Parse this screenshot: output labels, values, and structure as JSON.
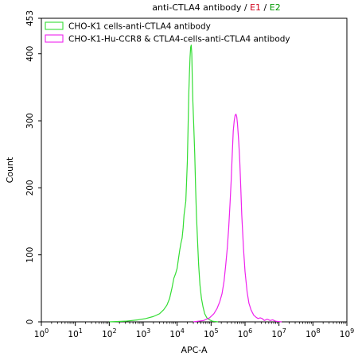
{
  "chart_data": {
    "type": "line",
    "title": {
      "main": "anti-CTLA4 antibody",
      "sep1": " / ",
      "e1": "E1",
      "sep2": " / ",
      "e2": "E2",
      "e1_color": "#d0021b",
      "e2_color": "#009900"
    },
    "xlabel": "APC-A",
    "ylabel": "Count",
    "x_scale": "log",
    "xlim": [
      1,
      1000000000
    ],
    "ylim": [
      0,
      453
    ],
    "x_ticks": [
      {
        "base": "10",
        "exp": "0",
        "value": 1
      },
      {
        "base": "10",
        "exp": "1",
        "value": 10
      },
      {
        "base": "10",
        "exp": "2",
        "value": 100
      },
      {
        "base": "10",
        "exp": "3",
        "value": 1000
      },
      {
        "base": "10",
        "exp": "4",
        "value": 10000
      },
      {
        "base": "10",
        "exp": "5",
        "value": 100000
      },
      {
        "base": "10",
        "exp": "6",
        "value": 1000000
      },
      {
        "base": "10",
        "exp": "7",
        "value": 10000000
      },
      {
        "base": "10",
        "exp": "8",
        "value": 100000000
      },
      {
        "base": "10",
        "exp": "9",
        "value": 1000000000
      }
    ],
    "y_ticks": [
      {
        "label": "0",
        "value": 0
      },
      {
        "label": "100",
        "value": 100
      },
      {
        "label": "200",
        "value": 200
      },
      {
        "label": "300",
        "value": 300
      },
      {
        "label": "400",
        "value": 400
      },
      {
        "label": "453",
        "value": 453
      }
    ],
    "legend_position": "top-left",
    "grid": false,
    "series": [
      {
        "name": "CHO-K1 cells-anti-CTLA4 antibody",
        "color": "#33dd33",
        "points": [
          [
            100,
            0
          ],
          [
            300,
            1
          ],
          [
            700,
            3
          ],
          [
            1200,
            5
          ],
          [
            2000,
            8
          ],
          [
            3000,
            12
          ],
          [
            4000,
            18
          ],
          [
            5000,
            25
          ],
          [
            6000,
            35
          ],
          [
            7000,
            50
          ],
          [
            8000,
            65
          ],
          [
            9000,
            72
          ],
          [
            10000,
            80
          ],
          [
            11000,
            95
          ],
          [
            12000,
            108
          ],
          [
            13000,
            118
          ],
          [
            14000,
            125
          ],
          [
            15000,
            140
          ],
          [
            16000,
            160
          ],
          [
            17000,
            170
          ],
          [
            18000,
            180
          ],
          [
            19000,
            210
          ],
          [
            20000,
            240
          ],
          [
            21000,
            290
          ],
          [
            22000,
            340
          ],
          [
            23000,
            370
          ],
          [
            24000,
            395
          ],
          [
            25000,
            410
          ],
          [
            26000,
            413
          ],
          [
            27000,
            400
          ],
          [
            28000,
            360
          ],
          [
            29000,
            330
          ],
          [
            31000,
            290
          ],
          [
            33000,
            250
          ],
          [
            35000,
            200
          ],
          [
            37000,
            160
          ],
          [
            40000,
            120
          ],
          [
            43000,
            85
          ],
          [
            47000,
            55
          ],
          [
            52000,
            35
          ],
          [
            58000,
            22
          ],
          [
            65000,
            12
          ],
          [
            75000,
            6
          ],
          [
            90000,
            3
          ],
          [
            110000,
            1
          ],
          [
            160000,
            0
          ]
        ]
      },
      {
        "name": "CHO-K1-Hu-CCR8 & CTLA4-cells-anti-CTLA4 antibody",
        "color": "#ee22ee",
        "points": [
          [
            30000,
            0
          ],
          [
            60000,
            2
          ],
          [
            90000,
            6
          ],
          [
            120000,
            12
          ],
          [
            150000,
            20
          ],
          [
            180000,
            30
          ],
          [
            210000,
            42
          ],
          [
            240000,
            60
          ],
          [
            270000,
            85
          ],
          [
            300000,
            110
          ],
          [
            330000,
            140
          ],
          [
            360000,
            175
          ],
          [
            390000,
            210
          ],
          [
            420000,
            250
          ],
          [
            450000,
            285
          ],
          [
            480000,
            300
          ],
          [
            510000,
            308
          ],
          [
            540000,
            310
          ],
          [
            570000,
            306
          ],
          [
            600000,
            295
          ],
          [
            650000,
            270
          ],
          [
            700000,
            240
          ],
          [
            750000,
            200
          ],
          [
            800000,
            160
          ],
          [
            900000,
            110
          ],
          [
            1000000,
            75
          ],
          [
            1150000,
            45
          ],
          [
            1300000,
            28
          ],
          [
            1500000,
            18
          ],
          [
            1800000,
            10
          ],
          [
            2100000,
            7
          ],
          [
            2400000,
            5
          ],
          [
            2800000,
            6
          ],
          [
            3200000,
            5
          ],
          [
            3700000,
            2
          ],
          [
            4500000,
            4
          ],
          [
            5500000,
            2
          ],
          [
            6500000,
            3
          ],
          [
            8000000,
            1
          ],
          [
            12000000,
            0
          ]
        ]
      }
    ]
  }
}
